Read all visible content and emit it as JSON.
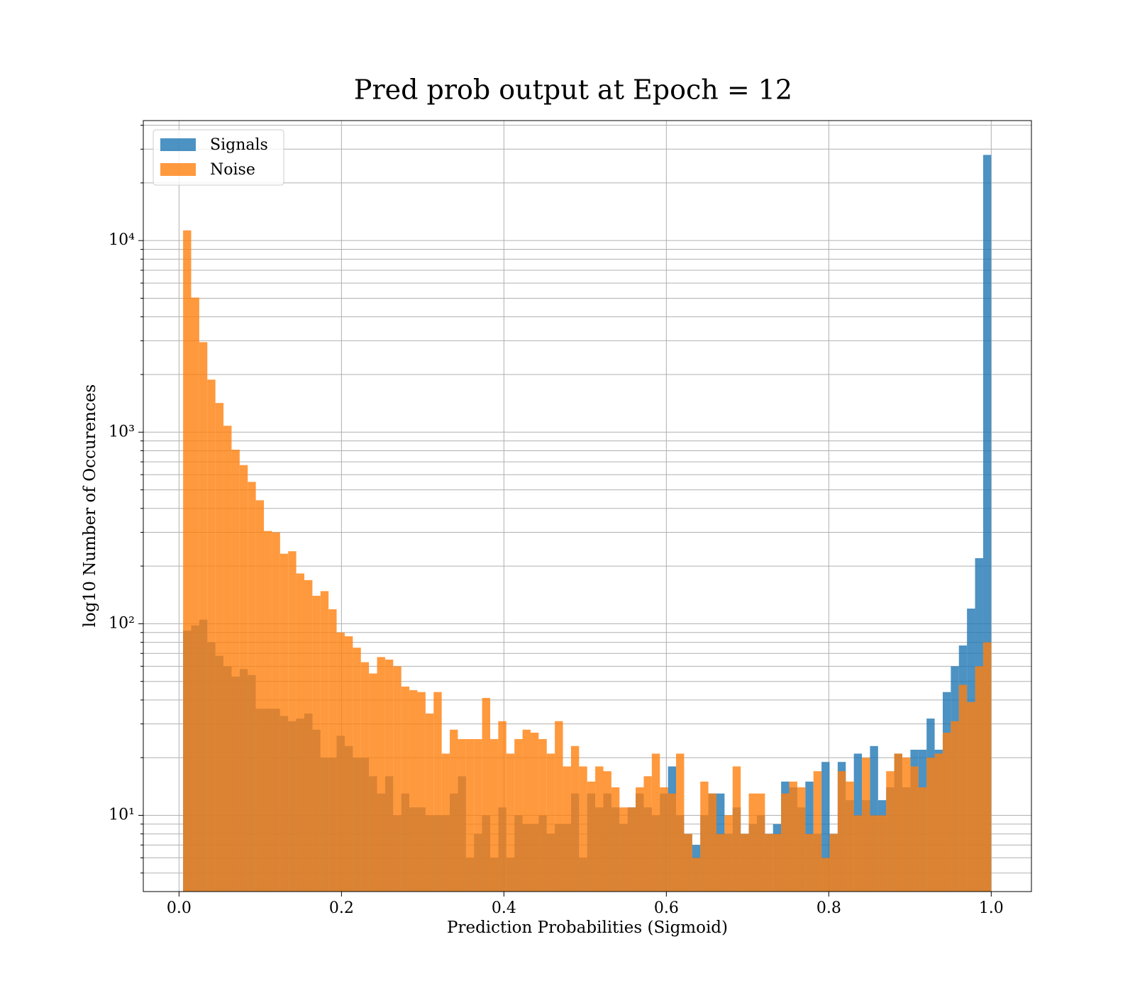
{
  "chart_data": {
    "type": "histogram",
    "title": "Pred prob output at Epoch = 12",
    "xlabel": "Prediction Probabilities (Sigmoid)",
    "ylabel": "log10 Number of Occurences",
    "bins": [
      0.005,
      0.01495,
      0.0249,
      0.03485,
      0.0448,
      0.05475,
      0.0647,
      0.07465,
      0.0846,
      0.09455,
      0.1045,
      0.11445,
      0.1244,
      0.13435,
      0.1443,
      0.15425,
      0.1642,
      0.17415,
      0.1841,
      0.19405,
      0.204,
      0.21395,
      0.2239,
      0.23385,
      0.2438,
      0.25375,
      0.2637,
      0.27365,
      0.2836,
      0.29355,
      0.3035,
      0.31345,
      0.3234,
      0.33335,
      0.3433,
      0.35325,
      0.3632,
      0.37315,
      0.3831,
      0.39305,
      0.403,
      0.41295,
      0.4229,
      0.43285,
      0.4428,
      0.45275,
      0.4627,
      0.47265,
      0.4826,
      0.49255,
      0.5025,
      0.51245,
      0.5224,
      0.53235,
      0.5423,
      0.55225,
      0.5622,
      0.57215,
      0.5821,
      0.59205,
      0.602,
      0.61195,
      0.6219,
      0.63185,
      0.6418,
      0.65175,
      0.6617,
      0.67165,
      0.6816,
      0.69155,
      0.7015,
      0.71145,
      0.7214,
      0.73135,
      0.7413,
      0.75125,
      0.7612,
      0.77115,
      0.7811,
      0.79105,
      0.801,
      0.81095,
      0.8209,
      0.83085,
      0.8408,
      0.85075,
      0.8607,
      0.87065,
      0.8806,
      0.89055,
      0.9005,
      0.91045,
      0.9204,
      0.93035,
      0.9403,
      0.95025,
      0.9602,
      0.97015,
      0.9801,
      0.99005,
      1.0
    ],
    "series": [
      {
        "name": "Signals",
        "color": "#1f77b4",
        "values": [
          92,
          98,
          105,
          80,
          68,
          60,
          53,
          58,
          54,
          36,
          36,
          36,
          33,
          31,
          32,
          34,
          28,
          20,
          20,
          26,
          23,
          20,
          20,
          16,
          13,
          16,
          10,
          13,
          11,
          11,
          10,
          10,
          10,
          13,
          16,
          6,
          8,
          10,
          6,
          11,
          6,
          10,
          9,
          9,
          10,
          8,
          9,
          9,
          13,
          6,
          13,
          11,
          13,
          11,
          9,
          11,
          13,
          11,
          10,
          13,
          18,
          10,
          8,
          7,
          10,
          13,
          13,
          8,
          11,
          8,
          9,
          10,
          8,
          9,
          15,
          14,
          11,
          15,
          8,
          19,
          8,
          19,
          12,
          21,
          12,
          23,
          12,
          14,
          21,
          14,
          22,
          22,
          32,
          22,
          44,
          60,
          77,
          120,
          220,
          28000
        ]
      },
      {
        "name": "Noise",
        "color": "#ff7f0e",
        "values": [
          11300,
          5040,
          2950,
          1880,
          1420,
          1080,
          810,
          673,
          550,
          441,
          305,
          300,
          232,
          239,
          183,
          169,
          140,
          148,
          119,
          90,
          86,
          75,
          63,
          55,
          67,
          65,
          60,
          47,
          45,
          44,
          34,
          44,
          21,
          28,
          25,
          25,
          25,
          41,
          25,
          31,
          21,
          25,
          28,
          27,
          25,
          21,
          31,
          18,
          23,
          18,
          15,
          18,
          17,
          14,
          11,
          11,
          14,
          16,
          21,
          14,
          13,
          21,
          8,
          6,
          15,
          13,
          8,
          10,
          18,
          8,
          13,
          13,
          8,
          8,
          13,
          15,
          14,
          8,
          17,
          6,
          8,
          17,
          15,
          10,
          20,
          10,
          10,
          17,
          21,
          20,
          18,
          14,
          20,
          21,
          27,
          31,
          48,
          39,
          60,
          80
        ]
      }
    ],
    "xlim": [
      -0.044,
      1.0495
    ],
    "ylim": [
      4,
      42300
    ],
    "xticks": [
      {
        "value": 0,
        "label": "0.0"
      },
      0.2,
      0.4,
      0.6,
      0.8,
      {
        "value": 1,
        "label": "1.0"
      }
    ],
    "yticks": [
      {
        "value": 10,
        "label": "10¹"
      },
      {
        "value": 100,
        "label": "10²"
      },
      {
        "value": 1000,
        "label": "10³"
      },
      {
        "value": 10000,
        "label": "10⁴"
      }
    ],
    "yminorticks": [
      5,
      6,
      7,
      8,
      9,
      20,
      30,
      40,
      50,
      60,
      70,
      80,
      90,
      200,
      300,
      400,
      500,
      600,
      700,
      800,
      900,
      2000,
      3000,
      4000,
      5000,
      6000,
      7000,
      8000,
      9000,
      20000,
      30000,
      40000
    ],
    "log_y": true,
    "grid": true,
    "legend": "upper left",
    "opacity": 0.8
  }
}
